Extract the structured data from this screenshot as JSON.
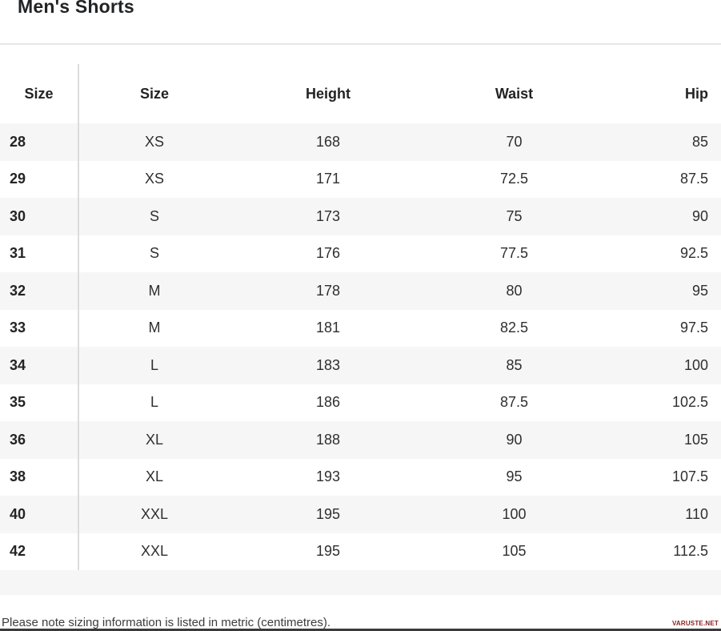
{
  "title": "Men's Shorts",
  "table": {
    "headers": [
      "Size",
      "Size",
      "Height",
      "Waist",
      "Hip"
    ],
    "rows": [
      [
        "28",
        "XS",
        "168",
        "70",
        "85"
      ],
      [
        "29",
        "XS",
        "171",
        "72.5",
        "87.5"
      ],
      [
        "30",
        "S",
        "173",
        "75",
        "90"
      ],
      [
        "31",
        "S",
        "176",
        "77.5",
        "92.5"
      ],
      [
        "32",
        "M",
        "178",
        "80",
        "95"
      ],
      [
        "33",
        "M",
        "181",
        "82.5",
        "97.5"
      ],
      [
        "34",
        "L",
        "183",
        "85",
        "100"
      ],
      [
        "35",
        "L",
        "186",
        "87.5",
        "102.5"
      ],
      [
        "36",
        "XL",
        "188",
        "90",
        "105"
      ],
      [
        "38",
        "XL",
        "193",
        "95",
        "107.5"
      ],
      [
        "40",
        "XXL",
        "195",
        "100",
        "110"
      ],
      [
        "42",
        "XXL",
        "195",
        "105",
        "112.5"
      ]
    ]
  },
  "footer": {
    "note": "Please note sizing information is listed in metric (centimetres).",
    "watermark": "VARUSTE.NET"
  },
  "colors": {
    "stripe_row": "#f6f6f6",
    "column_divider": "#dcdcdc",
    "top_divider": "#e6e6e6",
    "text": "#2e2f31",
    "watermark": "#8a1f1f",
    "bottom_bar": "#3a3a3a"
  }
}
